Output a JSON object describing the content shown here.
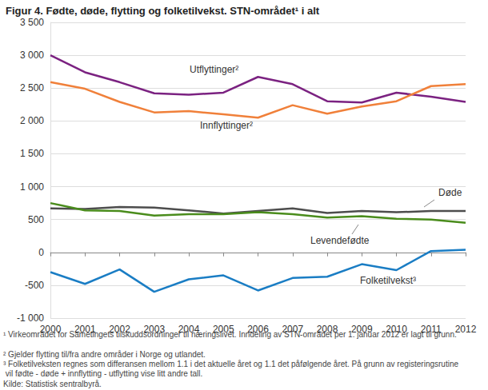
{
  "chart_data": {
    "type": "line",
    "title": "Figur 4. Fødte, døde, flytting og folketilvekst. STN-området¹ i alt",
    "categories": [
      "2000",
      "2001",
      "2002",
      "2003",
      "2004",
      "2005",
      "2006",
      "2007",
      "2008",
      "2009",
      "2010",
      "2011",
      "2012"
    ],
    "series": [
      {
        "name": "Utflyttinger²",
        "color": "#7b2281",
        "values": [
          3000,
          2740,
          2590,
          2420,
          2400,
          2430,
          2670,
          2560,
          2300,
          2280,
          2430,
          2370,
          2290
        ]
      },
      {
        "name": "Innflyttinger²",
        "color": "#f0803a",
        "values": [
          2590,
          2490,
          2290,
          2130,
          2150,
          2100,
          2050,
          2240,
          2110,
          2220,
          2300,
          2530,
          2560
        ]
      },
      {
        "name": "Døde",
        "color": "#4d4d4d",
        "values": [
          670,
          660,
          690,
          680,
          640,
          590,
          630,
          670,
          600,
          630,
          610,
          630,
          630
        ]
      },
      {
        "name": "Levendefødte",
        "color": "#4a8c1c",
        "values": [
          750,
          640,
          630,
          560,
          580,
          580,
          610,
          580,
          530,
          550,
          510,
          500,
          450
        ]
      },
      {
        "name": "Folketilvekst³",
        "color": "#1a7dc4",
        "values": [
          -300,
          -480,
          -260,
          -600,
          -410,
          -350,
          -580,
          -390,
          -370,
          -180,
          -270,
          20,
          40
        ]
      }
    ],
    "ylim": [
      -1000,
      3500
    ],
    "yticks": [
      {
        "value": -1000,
        "label": "-1 000"
      },
      -500,
      0,
      500,
      {
        "value": 1000,
        "label": "1 000"
      },
      {
        "value": 1500,
        "label": "1 500"
      },
      {
        "value": 2000,
        "label": "2 000"
      },
      {
        "value": 2500,
        "label": "2 500"
      },
      {
        "value": 3000,
        "label": "3 000"
      },
      {
        "value": 3500,
        "label": "3 500"
      }
    ],
    "grid": true,
    "annotations": [
      "¹ Virkeområdet for Sametingets tilskuddsordninger til næringslivet. Inndeling av STN-området per 1. januar 2012 er lagt til grunn.",
      "² Gjelder flytting til/fra andre områder i Norge og utlandet.",
      "³ Folketilveksten regnes som differansen mellom 1.1 i det aktuelle året og 1.1 det påfølgende året. På grunn av registeringsrutine vil fødte - døde + innflytting - utflytting vise litt andre tall.",
      "Kilde: Statistisk sentralbyrå."
    ]
  }
}
